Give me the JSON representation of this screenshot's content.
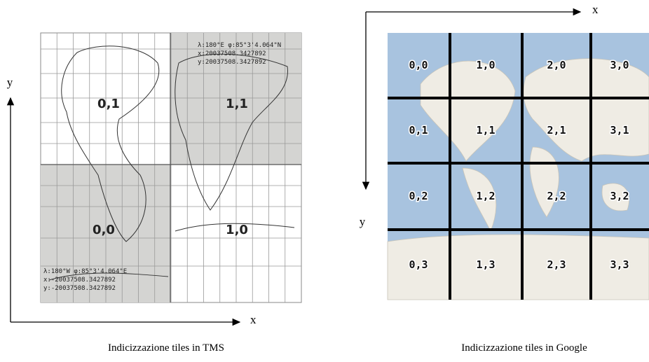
{
  "tms": {
    "axis_y": "y",
    "axis_x": "x",
    "tiles": {
      "top_left": "0,1",
      "top_right": "1,1",
      "bottom_left": "0,0",
      "bottom_right": "1,0"
    },
    "corner_top_right": [
      "λ:180°E φ:85°3'4.064\"N",
      "x:20037508.3427892",
      "y:20037508.3427892"
    ],
    "corner_bottom_left": [
      "λ:180°W φ:85°3'4.064\"E",
      "x:-20037508.3427892",
      "y:-20037508.3427892"
    ],
    "caption": "Indicizzazione tiles in TMS"
  },
  "google": {
    "axis_x": "x",
    "axis_y": "y",
    "rows": [
      [
        "0,0",
        "1,0",
        "2,0",
        "3,0"
      ],
      [
        "0,1",
        "1,1",
        "2,1",
        "3,1"
      ],
      [
        "0,2",
        "1,2",
        "2,2",
        "3,2"
      ],
      [
        "0,3",
        "1,3",
        "2,3",
        "3,3"
      ]
    ],
    "caption": "Indicizzazione tiles in Google"
  }
}
